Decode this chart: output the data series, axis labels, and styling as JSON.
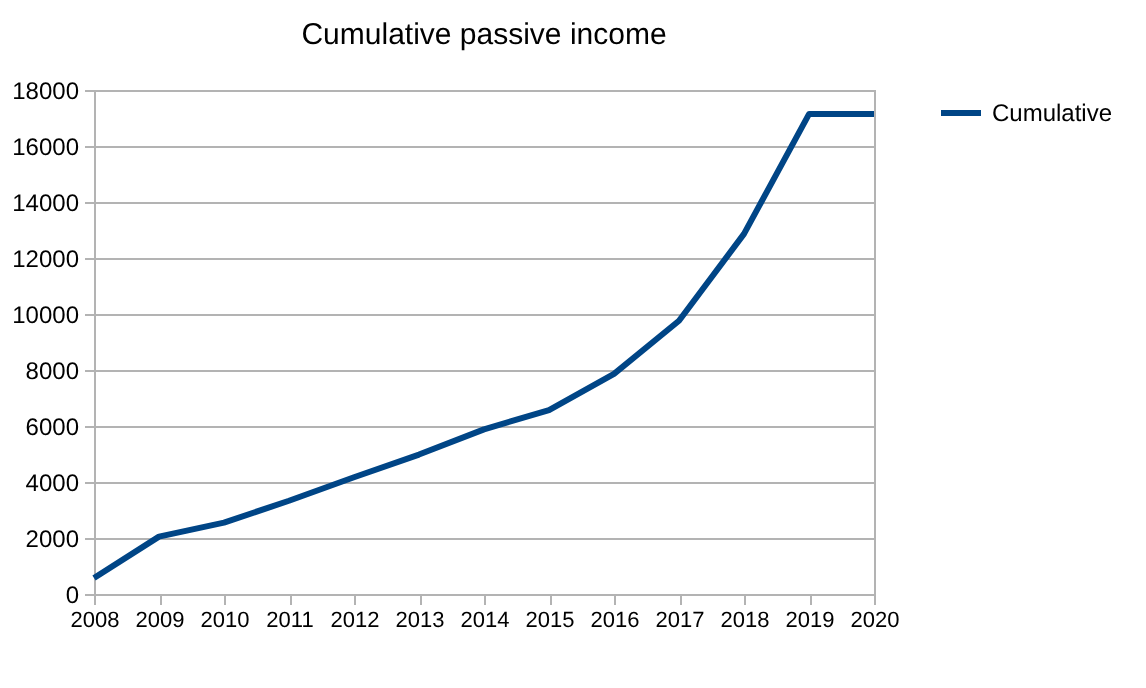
{
  "chart_data": {
    "type": "line",
    "title": "Cumulative passive income",
    "x": [
      2008,
      2009,
      2010,
      2011,
      2012,
      2013,
      2014,
      2015,
      2016,
      2017,
      2018,
      2019,
      2020
    ],
    "series": [
      {
        "name": "Cumulative",
        "color": "#004586",
        "values": [
          570,
          2050,
          2550,
          3330,
          4170,
          4980,
          5880,
          6570,
          7860,
          9760,
          12860,
          17140,
          17140
        ]
      }
    ],
    "xlim": [
      2008,
      2020
    ],
    "xticks": [
      2008,
      2009,
      2010,
      2011,
      2012,
      2013,
      2014,
      2015,
      2016,
      2017,
      2018,
      2019,
      2020
    ],
    "ylim": [
      0,
      18000
    ],
    "yticks": [
      0,
      2000,
      4000,
      6000,
      8000,
      10000,
      12000,
      14000,
      16000,
      18000
    ],
    "grid": "y",
    "legend": "right",
    "marker": "none",
    "line_style": "solid"
  }
}
